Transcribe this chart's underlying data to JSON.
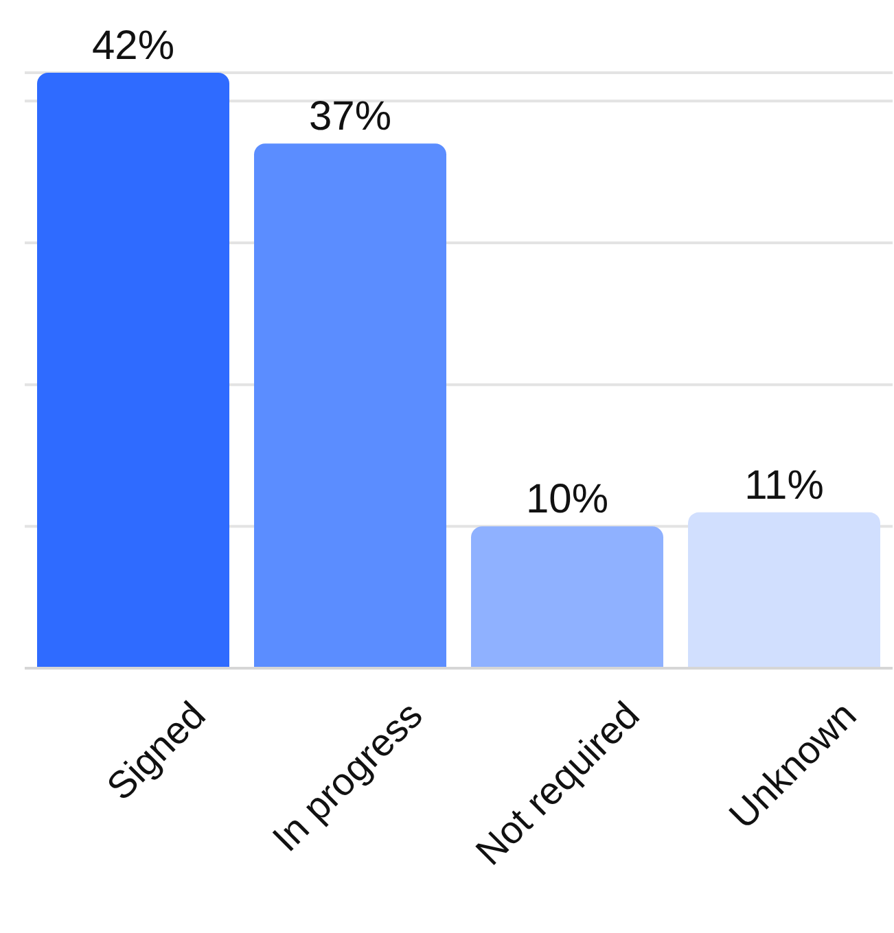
{
  "chart_data": {
    "type": "bar",
    "categories": [
      "Signed",
      "In progress",
      "Not required",
      "Unknown"
    ],
    "values": [
      42,
      37,
      10,
      11
    ],
    "value_labels": [
      "42%",
      "37%",
      "10%",
      "11%"
    ],
    "colors": [
      "#2f6bff",
      "#5b8dff",
      "#8fb1ff",
      "#d1dffe"
    ],
    "ylim": [
      0,
      42
    ],
    "yticks": [
      {
        "value": 0,
        "label": null
      },
      {
        "value": 10,
        "label": null
      },
      {
        "value": 20,
        "label": null
      },
      {
        "value": 30,
        "label": null
      },
      {
        "value": 40,
        "label": null
      }
    ],
    "grid": "y",
    "tick_labels": "x"
  }
}
